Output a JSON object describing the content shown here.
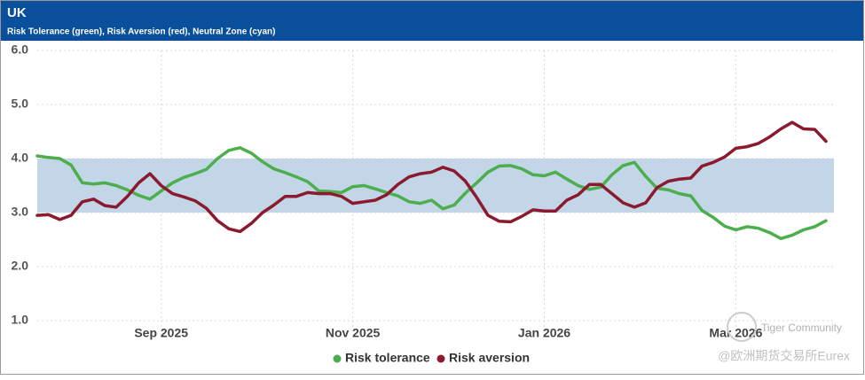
{
  "chart_data": {
    "type": "line",
    "title": "UK",
    "subtitle": "Risk Tolerance (green), Risk Aversion (red), Neutral Zone (cyan)",
    "categories": [
      null,
      null,
      null,
      null,
      null,
      null,
      null,
      null,
      null,
      null,
      null,
      "Sep 2025",
      null,
      null,
      null,
      null,
      null,
      null,
      null,
      null,
      null,
      null,
      null,
      null,
      null,
      null,
      null,
      null,
      "Nov 2025",
      null,
      null,
      null,
      null,
      null,
      null,
      null,
      null,
      null,
      null,
      null,
      null,
      null,
      null,
      null,
      null,
      "Jan 2026",
      null,
      null,
      null,
      null,
      null,
      null,
      null,
      null,
      null,
      null,
      null,
      null,
      null,
      null,
      null,
      null,
      "Mar 2026",
      null,
      null,
      null,
      null,
      null,
      null,
      null,
      null
    ],
    "series": [
      {
        "name": "Risk tolerance",
        "color": "#4cae4c",
        "values": [
          4.05,
          4.02,
          4.0,
          3.88,
          3.55,
          3.53,
          3.55,
          3.5,
          3.42,
          3.32,
          3.25,
          3.4,
          3.55,
          3.65,
          3.72,
          3.8,
          4.0,
          4.15,
          4.2,
          4.1,
          3.94,
          3.81,
          3.74,
          3.66,
          3.57,
          3.4,
          3.39,
          3.37,
          3.48,
          3.5,
          3.44,
          3.37,
          3.31,
          3.2,
          3.17,
          3.23,
          3.07,
          3.14,
          3.36,
          3.55,
          3.75,
          3.86,
          3.87,
          3.81,
          3.7,
          3.68,
          3.75,
          3.62,
          3.5,
          3.43,
          3.47,
          3.7,
          3.87,
          3.93,
          3.67,
          3.45,
          3.42,
          3.35,
          3.31,
          3.04,
          2.91,
          2.75,
          2.68,
          2.74,
          2.71,
          2.63,
          2.52,
          2.58,
          2.68,
          2.74,
          2.85
        ]
      },
      {
        "name": "Risk aversion",
        "color": "#8b1a2e",
        "values": [
          2.95,
          2.96,
          2.87,
          2.95,
          3.2,
          3.25,
          3.13,
          3.1,
          3.3,
          3.55,
          3.72,
          3.5,
          3.35,
          3.29,
          3.22,
          3.08,
          2.85,
          2.7,
          2.65,
          2.8,
          3.0,
          3.14,
          3.3,
          3.3,
          3.37,
          3.35,
          3.35,
          3.3,
          3.17,
          3.2,
          3.23,
          3.33,
          3.52,
          3.66,
          3.72,
          3.75,
          3.84,
          3.77,
          3.58,
          3.28,
          2.95,
          2.84,
          2.83,
          2.93,
          3.05,
          3.03,
          3.03,
          3.23,
          3.33,
          3.52,
          3.52,
          3.35,
          3.18,
          3.1,
          3.18,
          3.46,
          3.58,
          3.62,
          3.64,
          3.86,
          3.93,
          4.03,
          4.19,
          4.22,
          4.28,
          4.4,
          4.55,
          4.67,
          4.55,
          4.54,
          4.32
        ]
      }
    ],
    "band": [
      3.0,
      4.0
    ],
    "band_color": "#c2d6e8",
    "ylim": [
      1,
      6
    ],
    "yticks": [
      {
        "value": 1,
        "label": "1.0"
      },
      {
        "value": 2,
        "label": "2.0"
      },
      {
        "value": 3,
        "label": "3.0"
      },
      {
        "value": 4,
        "label": "4.0"
      },
      {
        "value": 5,
        "label": "5.0"
      },
      {
        "value": 6,
        "label": "6.0"
      }
    ],
    "grid": true,
    "legend": "bottom",
    "watermark": [
      "Tiger Community",
      "@欧洲期货交易所Eurex"
    ]
  }
}
